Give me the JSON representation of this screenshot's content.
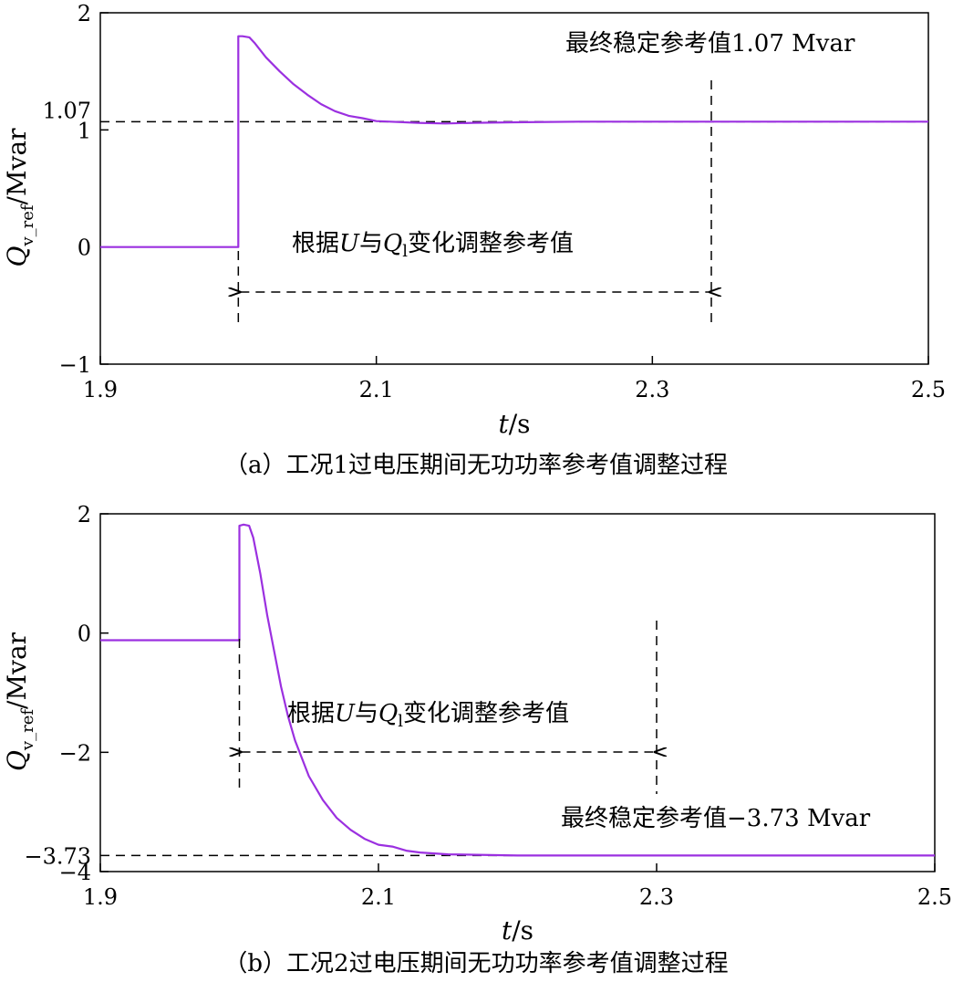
{
  "chart_data": [
    {
      "type": "line",
      "caption": "（a）工况1过电压期间无功功率参考值调整过程",
      "xlabel_italic": "t",
      "xlabel_unit": "/s",
      "ylabel_q": "Q",
      "ylabel_sub": "v_ref",
      "ylabel_unit": "/Mvar",
      "xlim": [
        1.9,
        2.5
      ],
      "ylim": [
        -1,
        2
      ],
      "x_ticks": [
        1.9,
        2.1,
        2.3,
        2.5
      ],
      "x_tick_labels": [
        "1.9",
        "2.1",
        "2.3",
        "2.5"
      ],
      "y_ticks": [
        -1,
        0,
        1,
        2
      ],
      "y_tick_labels": [
        "−1",
        "0",
        "1",
        "2"
      ],
      "ref_value": 1.07,
      "ref_label": "1.07",
      "annotation_final": "最终稳定参考值1.07 Mvar",
      "annotation_adjust_pre": "根据",
      "annotation_adjust_u": "U",
      "annotation_adjust_mid": "与",
      "annotation_adjust_q": "Q",
      "annotation_adjust_sub": "l",
      "annotation_adjust_post": "变化调整参考值",
      "interval": [
        2.0,
        2.345
      ],
      "line_color": "#9b30e0",
      "series": [
        {
          "x": [
            1.9,
            2.0,
            2.0,
            2.003,
            2.008,
            2.012,
            2.02,
            2.03,
            2.04,
            2.05,
            2.06,
            2.07,
            2.08,
            2.09,
            2.1,
            2.11,
            2.13,
            2.15,
            2.17,
            2.2,
            2.25,
            2.3,
            2.5
          ],
          "y": [
            0,
            0,
            1.8,
            1.8,
            1.79,
            1.74,
            1.62,
            1.5,
            1.39,
            1.3,
            1.22,
            1.16,
            1.12,
            1.1,
            1.075,
            1.07,
            1.06,
            1.055,
            1.06,
            1.065,
            1.07,
            1.07,
            1.07
          ]
        }
      ]
    },
    {
      "type": "line",
      "caption": "（b）工况2过电压期间无功功率参考值调整过程",
      "xlabel_italic": "t",
      "xlabel_unit": "/s",
      "ylabel_q": "Q",
      "ylabel_sub": "v_ref",
      "ylabel_unit": "/Mvar",
      "xlim": [
        1.9,
        2.5
      ],
      "ylim": [
        -4,
        2
      ],
      "x_ticks": [
        1.9,
        2.1,
        2.3,
        2.5
      ],
      "x_tick_labels": [
        "1.9",
        "2.1",
        "2.3",
        "2.5"
      ],
      "y_ticks": [
        -4,
        -2,
        0,
        2
      ],
      "y_tick_labels": [
        "−4",
        "−2",
        "0",
        "2"
      ],
      "ref_value": -3.73,
      "ref_label": "−3.73",
      "annotation_final": "最终稳定参考值−3.73 Mvar",
      "annotation_adjust_pre": "根据",
      "annotation_adjust_u": "U",
      "annotation_adjust_mid": "与",
      "annotation_adjust_q": "Q",
      "annotation_adjust_sub": "l",
      "annotation_adjust_post": "变化调整参考值",
      "interval": [
        2.0,
        2.305
      ],
      "line_color": "#9b30e0",
      "series": [
        {
          "x": [
            1.9,
            2.0,
            2.0,
            2.003,
            2.007,
            2.01,
            2.015,
            2.02,
            2.025,
            2.03,
            2.035,
            2.04,
            2.05,
            2.06,
            2.07,
            2.08,
            2.09,
            2.1,
            2.11,
            2.12,
            2.13,
            2.15,
            2.2,
            2.3,
            2.5
          ],
          "y": [
            -0.12,
            -0.12,
            1.8,
            1.82,
            1.8,
            1.6,
            1.0,
            0.3,
            -0.3,
            -0.9,
            -1.4,
            -1.8,
            -2.4,
            -2.8,
            -3.1,
            -3.3,
            -3.45,
            -3.55,
            -3.58,
            -3.65,
            -3.68,
            -3.71,
            -3.73,
            -3.73,
            -3.73
          ]
        }
      ]
    }
  ]
}
